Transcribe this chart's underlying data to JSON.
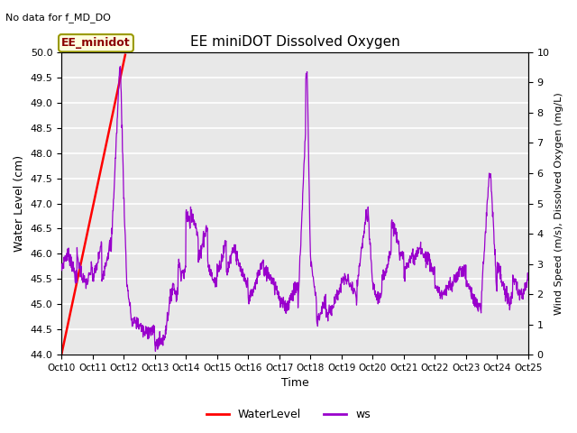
{
  "title": "EE miniDOT Dissolved Oxygen",
  "top_left_text": "No data for f_MD_DO",
  "annotation_text": "EE_minidot",
  "xlabel": "Time",
  "ylabel_left": "Water Level (cm)",
  "ylabel_right": "Wind Speed (m/s), Dissolved Oxygen (mg/L)",
  "xlim": [
    0,
    15
  ],
  "ylim_left": [
    44.0,
    50.0
  ],
  "ylim_right": [
    0.0,
    10.0
  ],
  "xtick_positions": [
    0,
    1,
    2,
    3,
    4,
    5,
    6,
    7,
    8,
    9,
    10,
    11,
    12,
    13,
    14,
    15
  ],
  "xtick_labels": [
    "Oct 10",
    "Oct 11",
    "Oct 12",
    "Oct 13",
    "Oct 14",
    "Oct 15",
    "Oct 16",
    "Oct 17",
    "Oct 18",
    "Oct 19",
    "Oct 20",
    "Oct 21",
    "Oct 22",
    "Oct 23",
    "Oct 24",
    "Oct 25"
  ],
  "water_level_color": "#ff0000",
  "ws_color": "#9900cc",
  "legend_labels": [
    "WaterLevel",
    "ws"
  ],
  "background_color": "#e8e8e8",
  "grid_color": "#ffffff",
  "yticks_left": [
    44.0,
    44.5,
    45.0,
    45.5,
    46.0,
    46.5,
    47.0,
    47.5,
    48.0,
    48.5,
    49.0,
    49.5,
    50.0
  ],
  "yticks_right": [
    0.0,
    1.0,
    2.0,
    3.0,
    4.0,
    5.0,
    6.0,
    7.0,
    8.0,
    9.0,
    10.0
  ]
}
